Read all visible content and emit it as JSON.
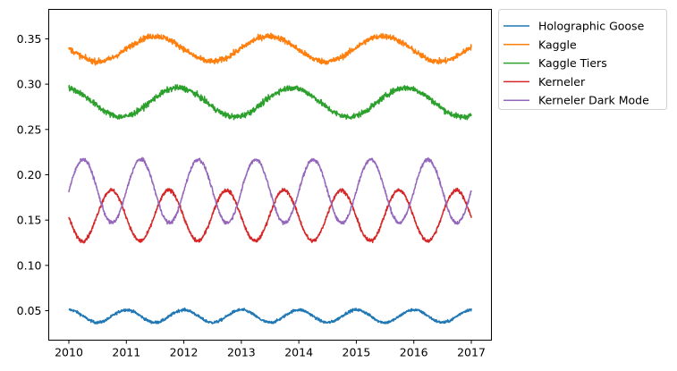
{
  "chart_data": {
    "type": "line",
    "title": "",
    "xlabel": "",
    "ylabel": "",
    "xlim": [
      2009.65,
      2017.35
    ],
    "ylim": [
      0.0175,
      0.3825
    ],
    "x_ticks": [
      2010,
      2011,
      2012,
      2013,
      2014,
      2015,
      2016,
      2017
    ],
    "x_tick_labels": [
      "2010",
      "2011",
      "2012",
      "2013",
      "2014",
      "2015",
      "2016",
      "2017"
    ],
    "y_ticks": [
      0.05,
      0.1,
      0.15,
      0.2,
      0.25,
      0.3,
      0.35
    ],
    "y_tick_labels": [
      "0.05",
      "0.10",
      "0.15",
      "0.20",
      "0.25",
      "0.30",
      "0.35"
    ],
    "grid": false,
    "legend_position": "outside-top-right",
    "x_range": [
      2010,
      2017
    ],
    "series": [
      {
        "name": "Holographic Goose",
        "color": "#1f77b4",
        "mean": 0.044,
        "amplitude": 0.007,
        "period_years": 1.0,
        "peak_year": 2011.0,
        "noise": 0.0015
      },
      {
        "name": "Kaggle",
        "color": "#ff7f0e",
        "mean": 0.339,
        "amplitude": 0.014,
        "period_years": 1.98,
        "peak_year": 2011.5,
        "noise": 0.003
      },
      {
        "name": "Kaggle Tiers",
        "color": "#2ca02c",
        "mean": 0.28,
        "amplitude": 0.016,
        "period_years": 1.98,
        "peak_year": 2011.9,
        "noise": 0.003
      },
      {
        "name": "Kerneler",
        "color": "#d62728",
        "mean": 0.155,
        "amplitude": 0.028,
        "period_years": 1.0,
        "peak_year": 2010.74,
        "noise": 0.002
      },
      {
        "name": "Kerneler Dark Mode",
        "color": "#9467bd",
        "mean": 0.182,
        "amplitude": 0.035,
        "period_years": 1.0,
        "peak_year": 2010.25,
        "noise": 0.002
      }
    ]
  }
}
